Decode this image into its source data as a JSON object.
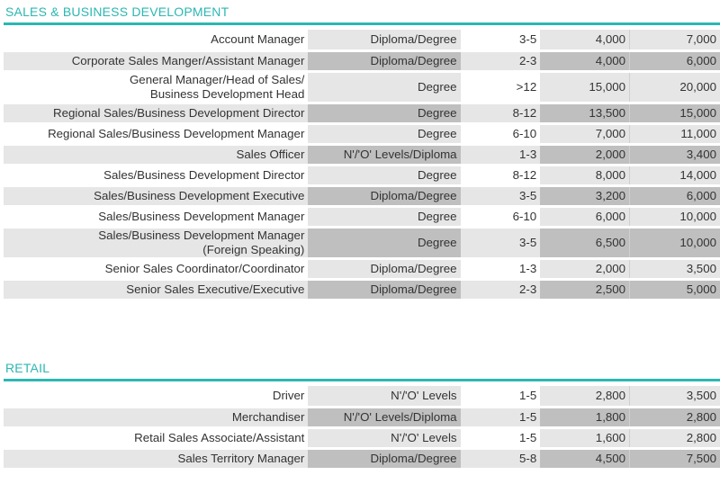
{
  "sections": [
    {
      "title": "SALES & BUSINESS DEVELOPMENT",
      "rows": [
        {
          "role": [
            "Account Manager"
          ],
          "education": "Diploma/Degree",
          "years": "3-5",
          "min": "4,000",
          "max": "7,000"
        },
        {
          "role": [
            "Corporate Sales Manger/Assistant Manager"
          ],
          "education": "Diploma/Degree",
          "years": "2-3",
          "min": "4,000",
          "max": "6,000"
        },
        {
          "role": [
            "General Manager/Head of Sales/",
            "Business Development Head"
          ],
          "education": "Degree",
          "years": ">12",
          "min": "15,000",
          "max": "20,000"
        },
        {
          "role": [
            "Regional Sales/Business Development Director"
          ],
          "education": "Degree",
          "years": "8-12",
          "min": "13,500",
          "max": "15,000"
        },
        {
          "role": [
            "Regional Sales/Business Development Manager"
          ],
          "education": "Degree",
          "years": "6-10",
          "min": "7,000",
          "max": "11,000"
        },
        {
          "role": [
            "Sales Officer"
          ],
          "education": "N'/'O' Levels/Diploma",
          "years": "1-3",
          "min": "2,000",
          "max": "3,400"
        },
        {
          "role": [
            "Sales/Business Development Director"
          ],
          "education": "Degree",
          "years": "8-12",
          "min": "8,000",
          "max": "14,000"
        },
        {
          "role": [
            "Sales/Business Development Executive"
          ],
          "education": "Diploma/Degree",
          "years": "3-5",
          "min": "3,200",
          "max": "6,000"
        },
        {
          "role": [
            "Sales/Business Development Manager"
          ],
          "education": "Degree",
          "years": "6-10",
          "min": "6,000",
          "max": "10,000"
        },
        {
          "role": [
            "Sales/Business Development Manager",
            "(Foreign Speaking)"
          ],
          "education": "Degree",
          "years": "3-5",
          "min": "6,500",
          "max": "10,000"
        },
        {
          "role": [
            "Senior Sales Coordinator/Coordinator"
          ],
          "education": "Diploma/Degree",
          "years": "1-3",
          "min": "2,000",
          "max": "3,500"
        },
        {
          "role": [
            "Senior Sales Executive/Executive"
          ],
          "education": "Diploma/Degree",
          "years": "2-3",
          "min": "2,500",
          "max": "5,000"
        }
      ]
    },
    {
      "title": "RETAIL",
      "rows": [
        {
          "role": [
            "Driver"
          ],
          "education": "N'/'O' Levels",
          "years": "1-5",
          "min": "2,800",
          "max": "3,500"
        },
        {
          "role": [
            "Merchandiser"
          ],
          "education": "N'/'O' Levels/Diploma",
          "years": "1-5",
          "min": "1,800",
          "max": "2,800"
        },
        {
          "role": [
            "Retail Sales Associate/Assistant"
          ],
          "education": "N'/'O' Levels",
          "years": "1-5",
          "min": "1,600",
          "max": "2,800"
        },
        {
          "role": [
            "Sales Territory Manager"
          ],
          "education": "Diploma/Degree",
          "years": "5-8",
          "min": "4,500",
          "max": "7,500"
        }
      ]
    }
  ]
}
